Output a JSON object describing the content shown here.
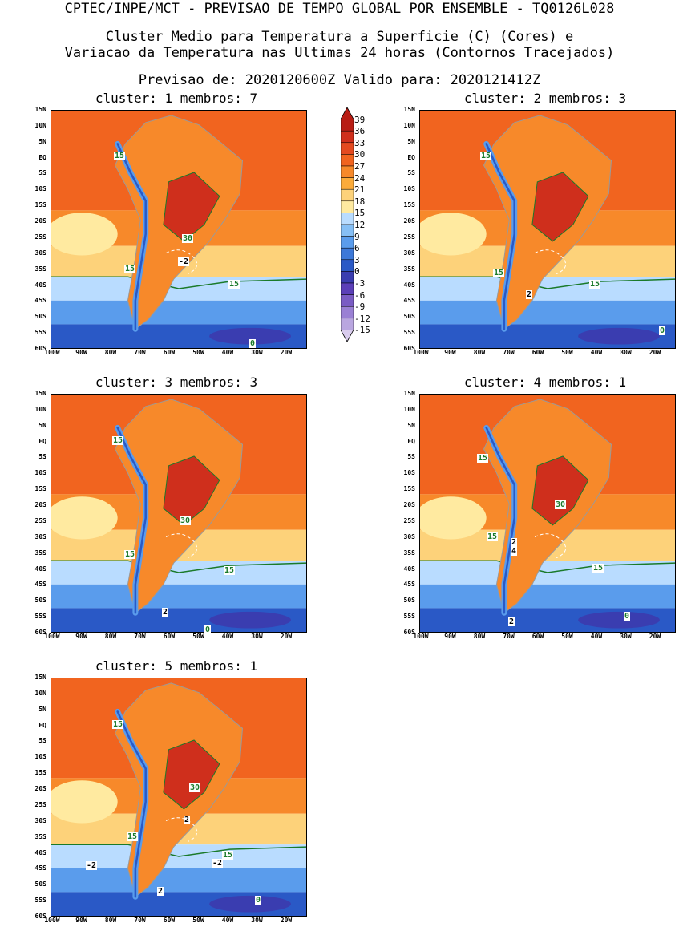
{
  "header": {
    "line1": "CPTEC/INPE/MCT - PREVISAO DE TEMPO GLOBAL POR ENSEMBLE - TQ0126L028",
    "line2": "Cluster Medio para Temperatura a Superficie (C) (Cores) e",
    "line3": "Variacao da Temperatura nas Ultimas 24 horas (Contornos Tracejados)",
    "line4": "Previsao de: 2020120600Z   Valido para: 2020121412Z"
  },
  "axes": {
    "lat_labels": [
      "15N",
      "10N",
      "5N",
      "EQ",
      "5S",
      "10S",
      "15S",
      "20S",
      "25S",
      "30S",
      "35S",
      "40S",
      "45S",
      "50S",
      "55S",
      "60S"
    ],
    "lon_labels": [
      "100W",
      "90W",
      "80W",
      "70W",
      "60W",
      "50W",
      "40W",
      "30W",
      "20W"
    ]
  },
  "colorbar": {
    "labels": [
      "39",
      "36",
      "33",
      "30",
      "27",
      "24",
      "21",
      "18",
      "15",
      "12",
      "9",
      "6",
      "3",
      "0",
      "-3",
      "-6",
      "-9",
      "-12",
      "-15"
    ],
    "colors": [
      "#b81d14",
      "#cf2f1c",
      "#e44a20",
      "#f1641f",
      "#f7892a",
      "#fbab3a",
      "#fdd27a",
      "#ffeaa0",
      "#b9dcff",
      "#86bff5",
      "#5a9cec",
      "#3c78d8",
      "#2a59c6",
      "#3a3db0",
      "#5b3fb8",
      "#7a5cc4",
      "#9a80d4",
      "#b9a6e0",
      "#d9ccee"
    ]
  },
  "panels": [
    {
      "title": "cluster: 1   membros: 7",
      "labels": {
        "c15a": "15",
        "c15b": "15",
        "c15c": "15",
        "c30": "30",
        "cm2": "-2",
        "c0": "0"
      }
    },
    {
      "title": "cluster: 2   membros: 3",
      "labels": {
        "c15a": "15",
        "c15b": "15",
        "c15c": "15",
        "c2": "2",
        "c0": "0"
      }
    },
    {
      "title": "cluster: 3   membros: 3",
      "labels": {
        "c15a": "15",
        "c15b": "15",
        "c15c": "15",
        "c30": "30",
        "c2": "2",
        "c0": "0"
      }
    },
    {
      "title": "cluster: 4   membros: 1",
      "labels": {
        "c15a": "15",
        "c15b": "15",
        "c15c": "15",
        "c30": "30",
        "c2a": "2",
        "c4": "4",
        "c2b": "2",
        "c0": "0"
      }
    },
    {
      "title": "cluster: 5   membros: 1",
      "labels": {
        "c15a": "15",
        "c15b": "15",
        "c15c": "15",
        "c30": "30",
        "c2a": "2",
        "cm2a": "-2",
        "cm2b": "-2",
        "c2b": "2",
        "c0": "0"
      }
    }
  ]
}
